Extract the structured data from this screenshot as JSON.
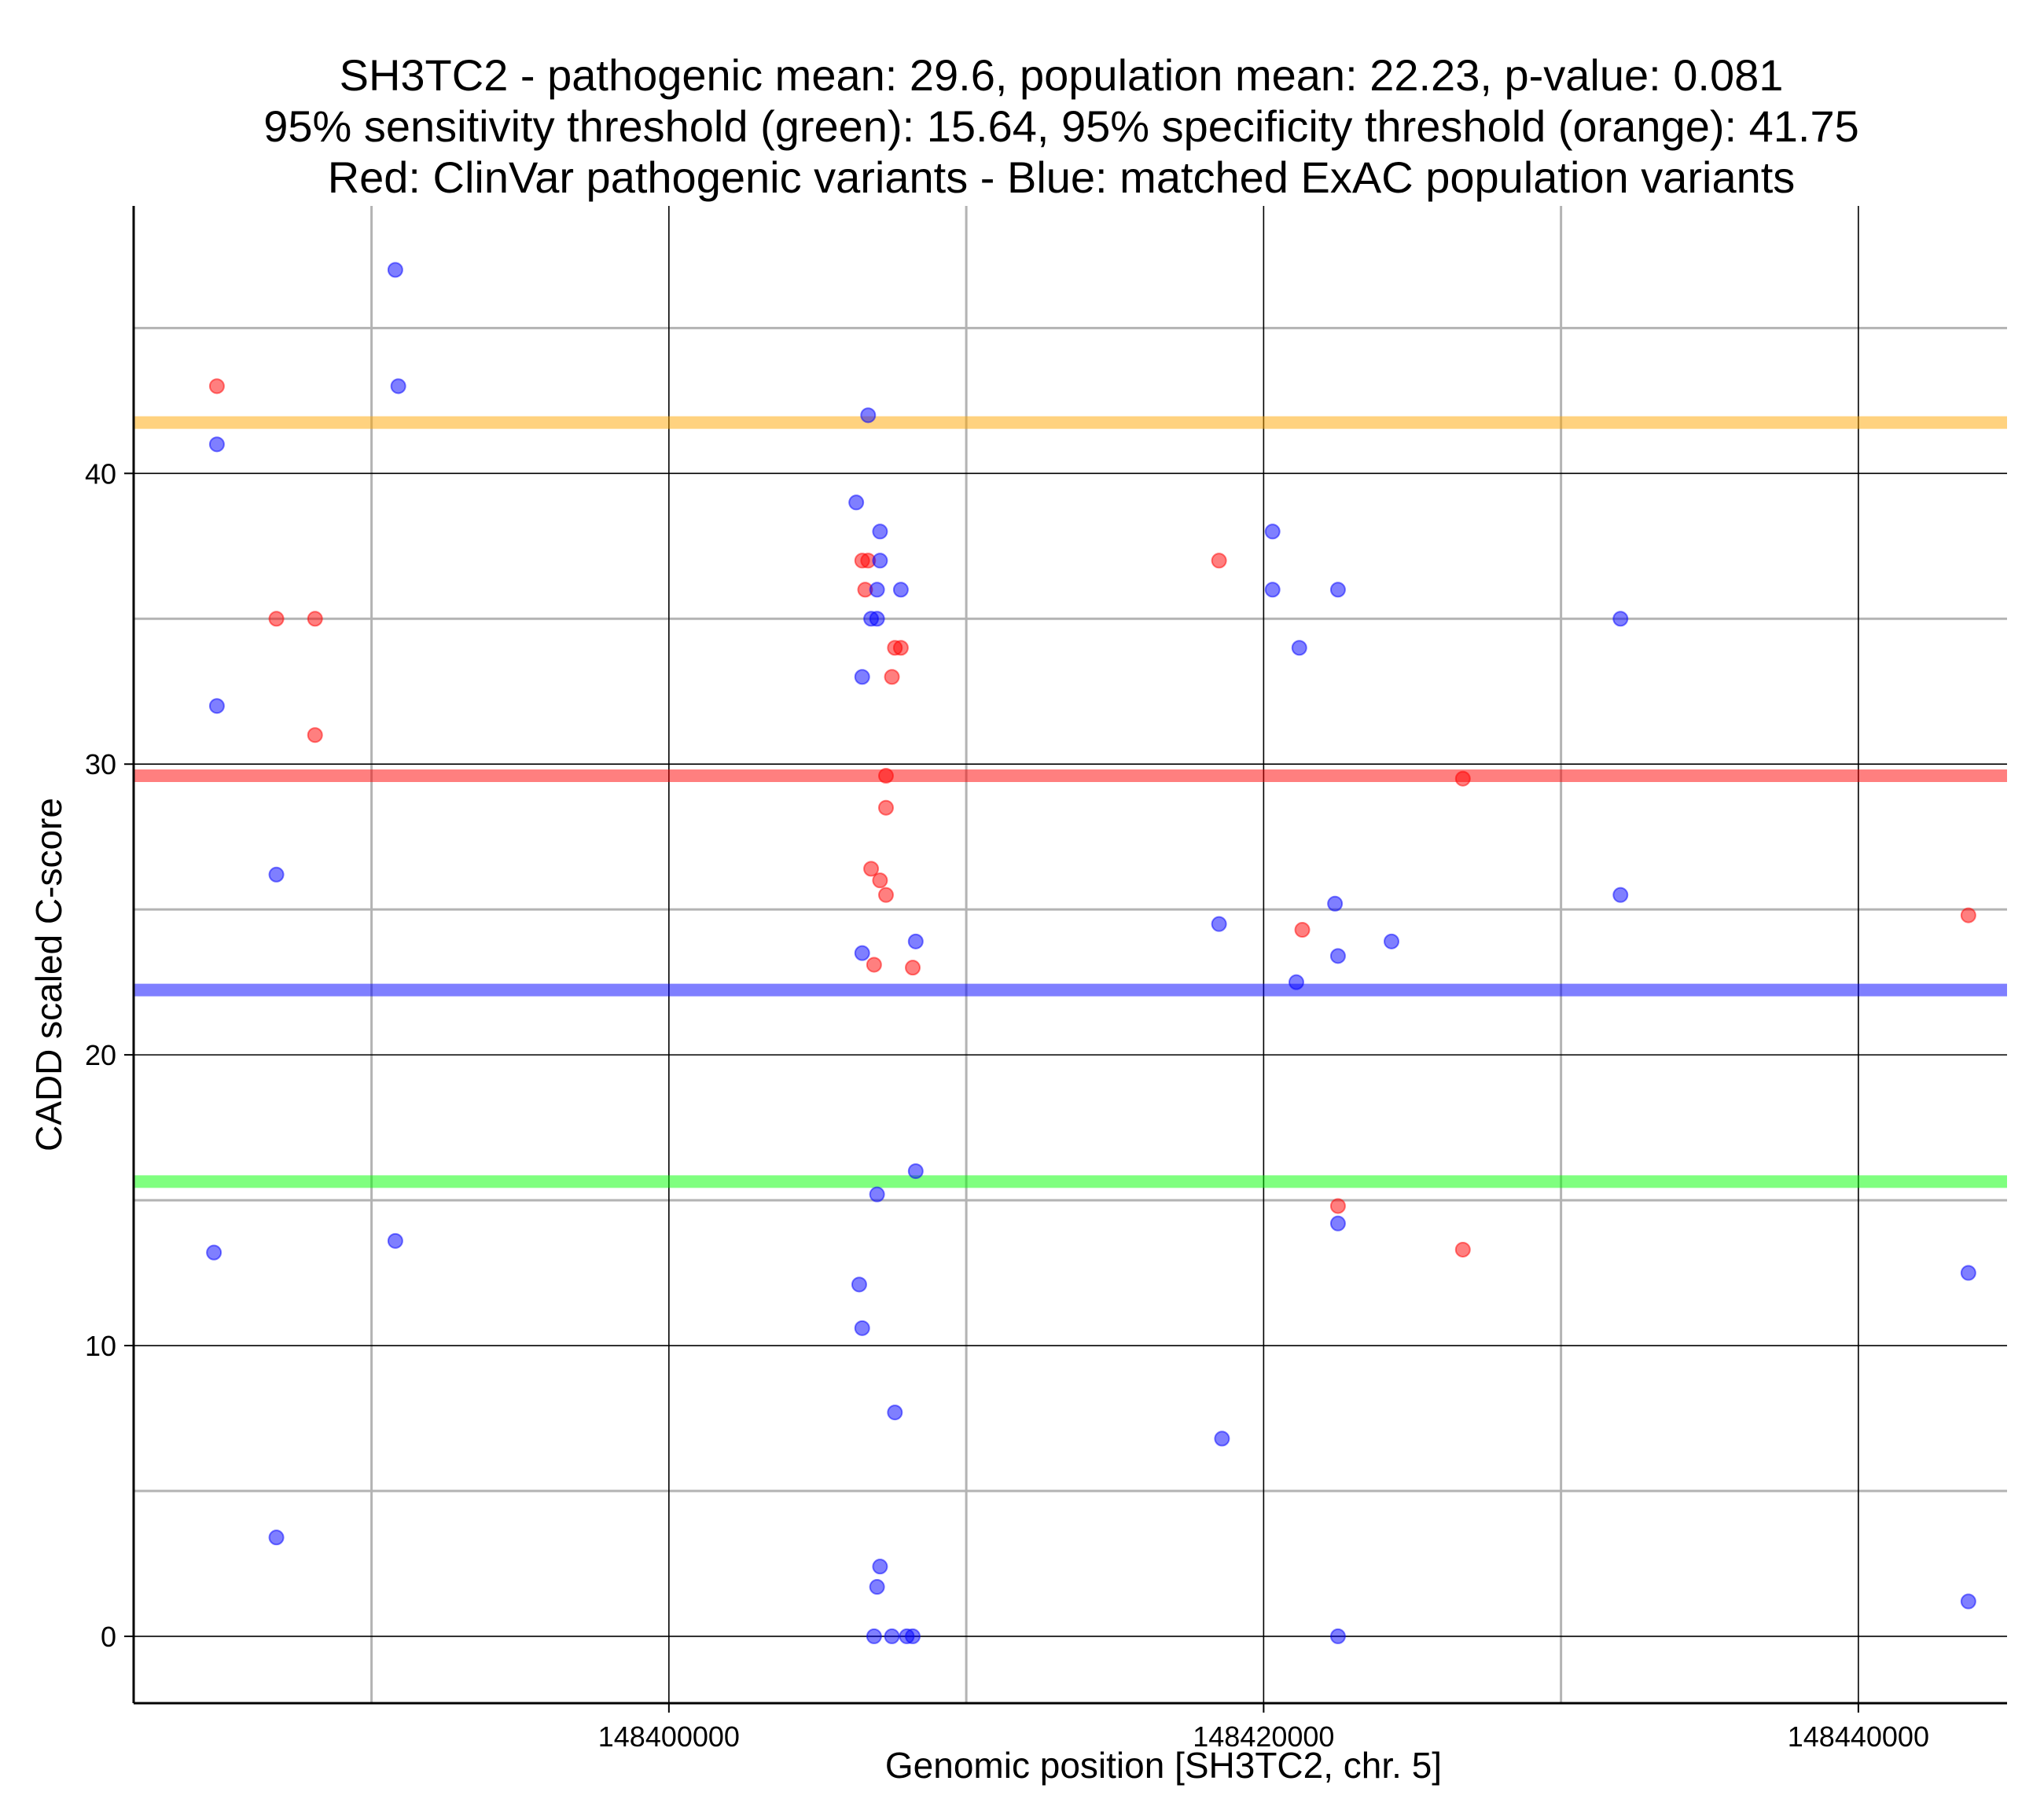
{
  "chart_data": {
    "type": "scatter",
    "title_lines": [
      "SH3TC2 - pathogenic mean: 29.6, population mean: 22.23, p-value: 0.081",
      "95% sensitivity threshold (green): 15.64, 95% specificity threshold (orange): 41.75",
      "Red: ClinVar pathogenic variants - Blue: matched ExAC population variants"
    ],
    "xlabel": "Genomic position [SH3TC2, chr. 5]",
    "ylabel": "CADD scaled C-score",
    "xlim": [
      148382000,
      148445000
    ],
    "ylim": [
      -2.3,
      49.2
    ],
    "x_ticks": [
      148400000,
      148420000,
      148440000
    ],
    "x_tick_labels": [
      "148400000",
      "148420000",
      "148440000"
    ],
    "x_minor_grid": [
      148390000,
      148410000,
      148430000
    ],
    "y_ticks": [
      0,
      10,
      20,
      30,
      40
    ],
    "y_tick_labels": [
      "0",
      "10",
      "20",
      "30",
      "40"
    ],
    "y_minor_grid": [
      5,
      15,
      25,
      35,
      45
    ],
    "grid": true,
    "hlines": [
      {
        "label": "95% specificity threshold",
        "value": 41.75,
        "color": "#FFA500"
      },
      {
        "label": "pathogenic mean",
        "value": 29.6,
        "color": "#FF0000"
      },
      {
        "label": "population mean",
        "value": 22.23,
        "color": "#0000FF"
      },
      {
        "label": "95% sensitivity threshold",
        "value": 15.64,
        "color": "#00FF00"
      }
    ],
    "series": [
      {
        "name": "ClinVar pathogenic variants",
        "color": "#FF0000",
        "points": [
          [
            148384800,
            43
          ],
          [
            148386800,
            35
          ],
          [
            148388100,
            35
          ],
          [
            148388100,
            31
          ],
          [
            148406500,
            37
          ],
          [
            148406700,
            37
          ],
          [
            148406600,
            36
          ],
          [
            148407600,
            34
          ],
          [
            148407800,
            34
          ],
          [
            148407500,
            33
          ],
          [
            148407300,
            29.6
          ],
          [
            148407300,
            28.5
          ],
          [
            148406800,
            26.4
          ],
          [
            148407100,
            26
          ],
          [
            148407300,
            25.5
          ],
          [
            148406900,
            23.1
          ],
          [
            148408200,
            23
          ],
          [
            148418500,
            37
          ],
          [
            148421300,
            24.3
          ],
          [
            148422500,
            14.8
          ],
          [
            148426700,
            29.5
          ],
          [
            148426700,
            13.3
          ],
          [
            148443700,
            24.8
          ]
        ]
      },
      {
        "name": "matched ExAC population variants",
        "color": "#0000FF",
        "points": [
          [
            148384800,
            41
          ],
          [
            148384800,
            32
          ],
          [
            148384700,
            13.2
          ],
          [
            148386800,
            26.2
          ],
          [
            148386800,
            3.4
          ],
          [
            148390800,
            47
          ],
          [
            148390900,
            43
          ],
          [
            148390800,
            13.6
          ],
          [
            148406700,
            42
          ],
          [
            148406300,
            39
          ],
          [
            148407100,
            38
          ],
          [
            148407100,
            37
          ],
          [
            148407000,
            36
          ],
          [
            148407800,
            36
          ],
          [
            148406800,
            35
          ],
          [
            148407000,
            35
          ],
          [
            148406500,
            33
          ],
          [
            148408300,
            23.9
          ],
          [
            148406500,
            23.5
          ],
          [
            148408300,
            16
          ],
          [
            148407000,
            15.2
          ],
          [
            148406400,
            12.1
          ],
          [
            148406500,
            10.6
          ],
          [
            148407600,
            7.7
          ],
          [
            148407100,
            2.4
          ],
          [
            148407000,
            1.7
          ],
          [
            148406900,
            0
          ],
          [
            148407500,
            0
          ],
          [
            148408000,
            0
          ],
          [
            148408200,
            0
          ],
          [
            148420300,
            38
          ],
          [
            148420300,
            36
          ],
          [
            148421200,
            34
          ],
          [
            148422500,
            36
          ],
          [
            148418500,
            24.5
          ],
          [
            148422400,
            25.2
          ],
          [
            148422500,
            23.4
          ],
          [
            148424300,
            23.9
          ],
          [
            148421100,
            22.5
          ],
          [
            148422500,
            14.2
          ],
          [
            148418600,
            6.8
          ],
          [
            148422500,
            0
          ],
          [
            148432000,
            35
          ],
          [
            148432000,
            25.5
          ],
          [
            148443700,
            12.5
          ],
          [
            148443700,
            1.2
          ]
        ]
      }
    ]
  }
}
